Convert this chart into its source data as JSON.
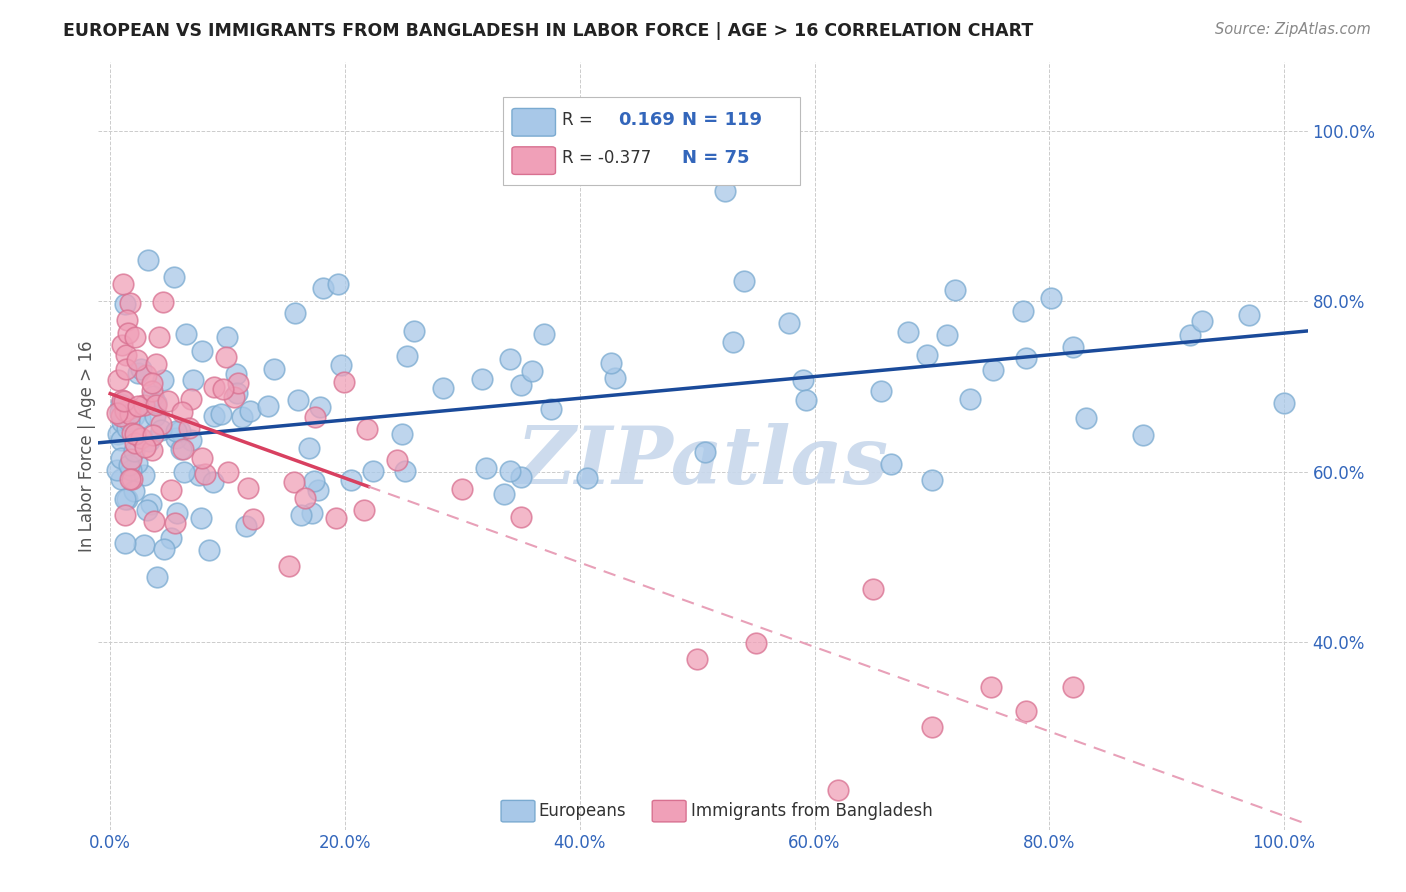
{
  "title": "EUROPEAN VS IMMIGRANTS FROM BANGLADESH IN LABOR FORCE | AGE > 16 CORRELATION CHART",
  "source": "Source: ZipAtlas.com",
  "ylabel": "In Labor Force | Age > 16",
  "xlim": [
    -0.01,
    1.02
  ],
  "ylim": [
    0.18,
    1.08
  ],
  "xticks": [
    0.0,
    0.2,
    0.4,
    0.6,
    0.8,
    1.0
  ],
  "xtick_labels": [
    "0.0%",
    "20.0%",
    "40.0%",
    "60.0%",
    "80.0%",
    "100.0%"
  ],
  "right_yticks": [
    0.4,
    0.6,
    0.8,
    1.0
  ],
  "right_ytick_labels": [
    "40.0%",
    "60.0%",
    "80.0%",
    "100.0%"
  ],
  "european_color": "#a8c8e8",
  "bangladesh_color": "#f0a0b8",
  "european_edge": "#7aaad0",
  "bangladesh_edge": "#d87090",
  "trend_european_color": "#1a4a9a",
  "trend_bangladesh_solid": "#d84060",
  "trend_bangladesh_dashed_color": "#e8a0b8",
  "bg_color": "#ffffff",
  "grid_color": "#cccccc",
  "watermark": "ZIPatlas",
  "watermark_color": "#c8d8ec",
  "title_color": "#222222",
  "source_color": "#888888",
  "tick_color": "#3366bb",
  "legend_R_color": "#333333",
  "legend_N_color": "#3366bb"
}
